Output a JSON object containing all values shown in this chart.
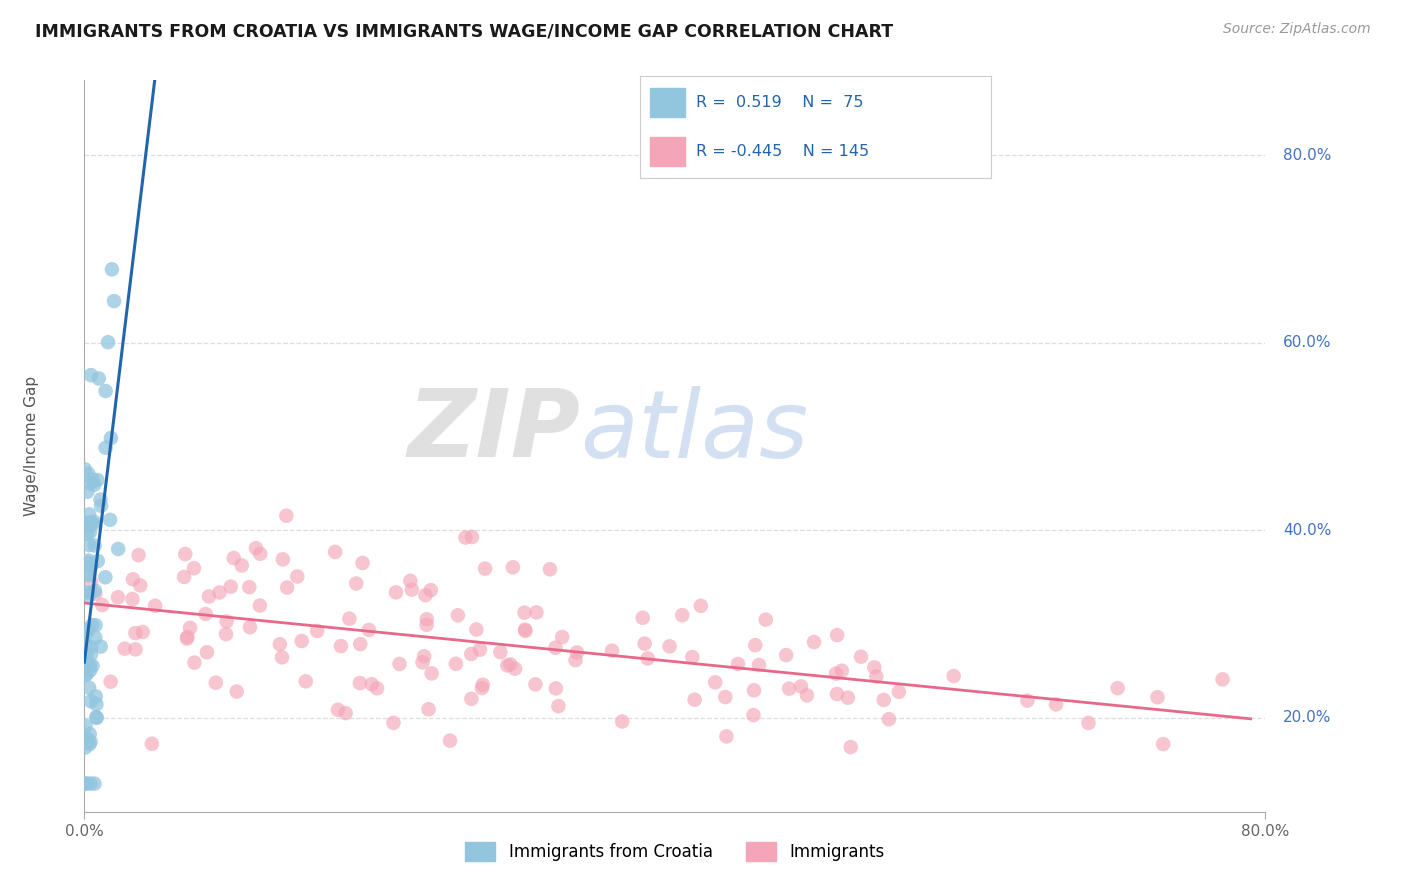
{
  "title": "IMMIGRANTS FROM CROATIA VS IMMIGRANTS WAGE/INCOME GAP CORRELATION CHART",
  "source": "Source: ZipAtlas.com",
  "ylabel": "Wage/Income Gap",
  "legend_label1": "Immigrants from Croatia",
  "legend_label2": "Immigrants",
  "legend_r1": "R =  0.519",
  "legend_n1": "N =  75",
  "legend_r2": "R = -0.445",
  "legend_n2": "N = 145",
  "blue_color": "#92c5de",
  "pink_color": "#f4a6b8",
  "blue_line_color": "#2166ac",
  "pink_line_color": "#e8688a",
  "watermark_zip": "ZIP",
  "watermark_atlas": "atlas",
  "watermark_zip_color": "#c8c8c8",
  "watermark_atlas_color": "#b0c8e8",
  "xmin": 0.0,
  "xmax": 0.8,
  "ymin": 0.1,
  "ymax": 0.88,
  "ytick_vals": [
    0.2,
    0.4,
    0.6,
    0.8
  ],
  "ytick_labels": [
    "20.0%",
    "40.0%",
    "60.0%",
    "80.0%"
  ],
  "grid_color": "#dddddd",
  "axis_color": "#aaaaaa"
}
